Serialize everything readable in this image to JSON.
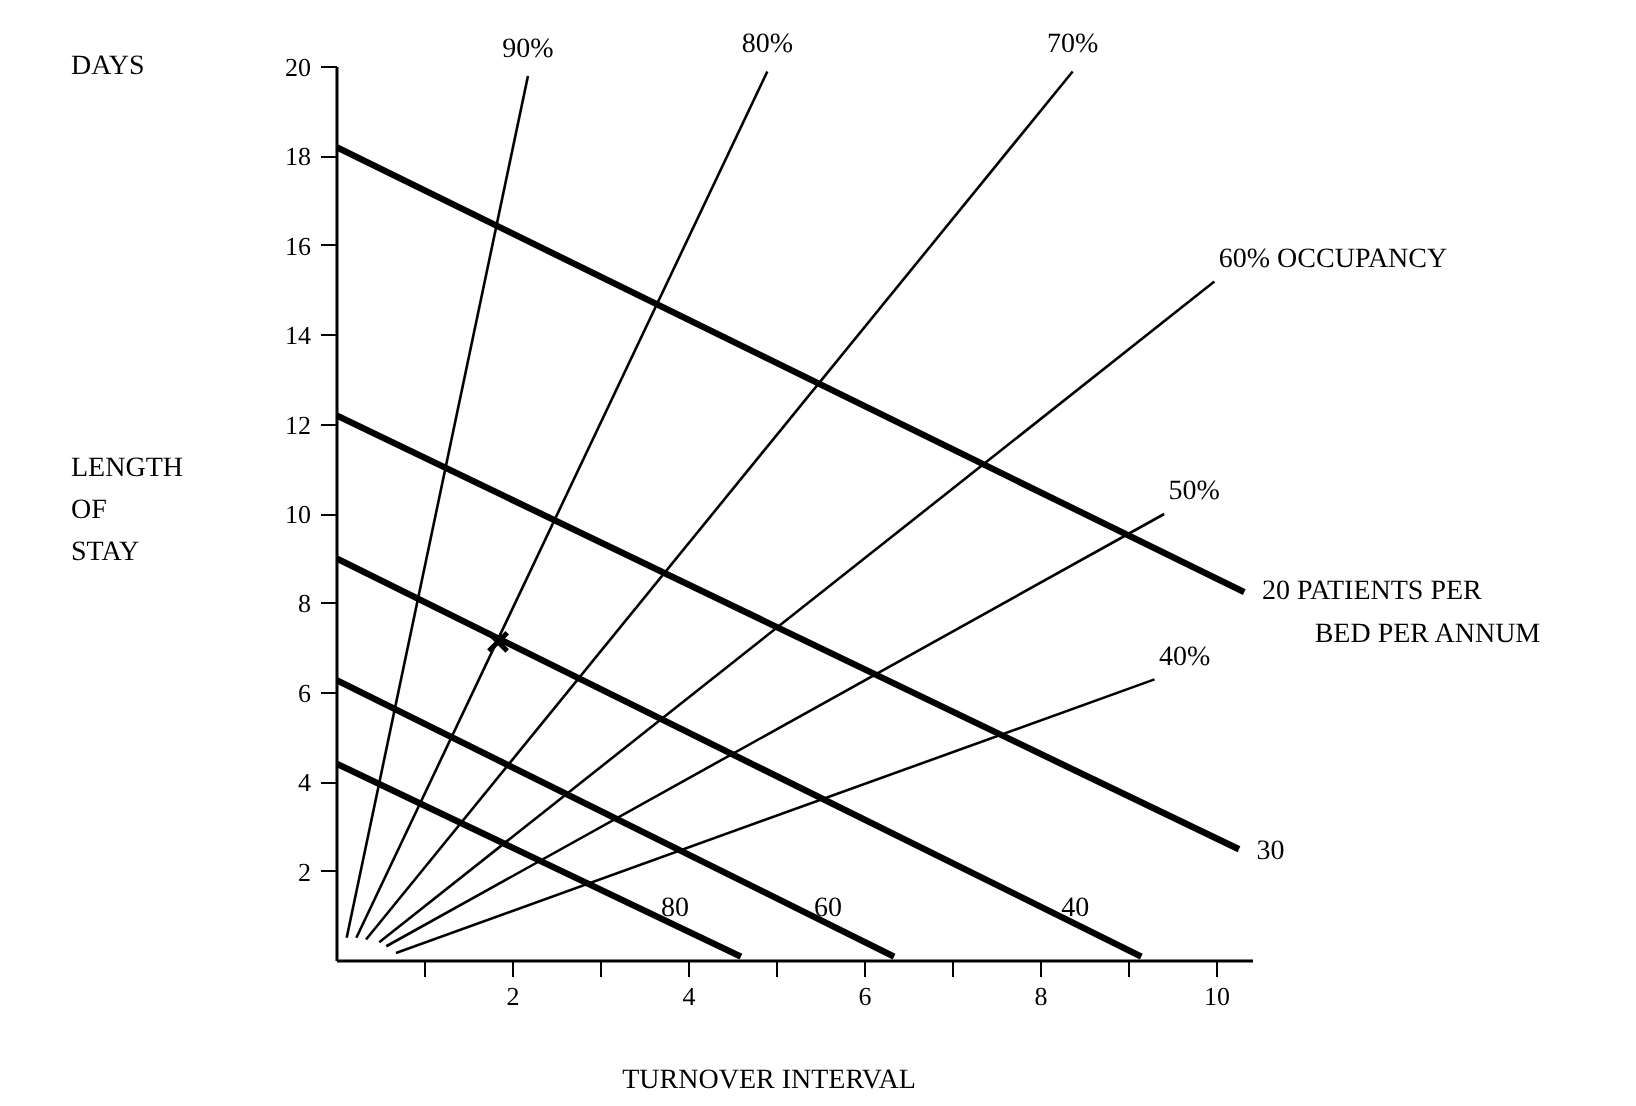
{
  "chart_data": {
    "type": "line",
    "xlabel": "TURNOVER INTERVAL",
    "ylabel": "LENGTH OF STAY",
    "annotations": [
      "DAYS"
    ],
    "xlim": [
      0,
      10.4
    ],
    "ylim": [
      0,
      20
    ],
    "xticks": [
      {
        "value": 1,
        "label": null
      },
      2,
      {
        "value": 3,
        "label": null
      },
      4,
      {
        "value": 5,
        "label": null
      },
      6,
      {
        "value": 7,
        "label": null
      },
      8,
      {
        "value": 9,
        "label": null
      },
      10
    ],
    "yticks": [
      2,
      4,
      6,
      8,
      10,
      12,
      14,
      16,
      18,
      20
    ],
    "grid": false,
    "legend": false,
    "series": [
      {
        "name": "90%",
        "color": "#000000",
        "x": [
          0.11,
          2.17
        ],
        "values": [
          0.52,
          19.8
        ]
      },
      {
        "name": "80%",
        "color": "#000000",
        "x": [
          0.22,
          4.89
        ],
        "values": [
          0.52,
          19.9
        ]
      },
      {
        "name": "70%",
        "color": "#000000",
        "x": [
          0.33,
          8.36
        ],
        "values": [
          0.48,
          19.9
        ]
      },
      {
        "name": "60% OCCUPANCY",
        "color": "#000000",
        "x": [
          0.48,
          9.97
        ],
        "values": [
          0.42,
          15.2
        ]
      },
      {
        "name": "50%",
        "color": "#000000",
        "x": [
          0.56,
          9.4
        ],
        "values": [
          0.33,
          10.0
        ]
      },
      {
        "name": "40%",
        "color": "#000000",
        "x": [
          0.67,
          9.29
        ],
        "values": [
          0.18,
          6.3
        ]
      },
      {
        "name": "20 PATIENTS PER BED PER ANNUM",
        "color": "#000000",
        "x": [
          0,
          10.31
        ],
        "values": [
          18.2,
          8.25
        ]
      },
      {
        "name": "30",
        "color": "#000000",
        "x": [
          0,
          10.25
        ],
        "values": [
          12.2,
          2.5
        ]
      },
      {
        "name": "40",
        "color": "#000000",
        "x": [
          0,
          9.14
        ],
        "values": [
          9.0,
          0.1
        ]
      },
      {
        "name": "60",
        "color": "#000000",
        "x": [
          0,
          6.33
        ],
        "values": [
          6.28,
          0.1
        ]
      },
      {
        "name": "80",
        "color": "#000000",
        "x": [
          0,
          4.59
        ],
        "values": [
          4.41,
          0.1
        ]
      },
      {
        "type": "scatter",
        "marker": "cross",
        "color": "#000000",
        "x": [
          1.83
        ],
        "values": [
          7.14
        ]
      }
    ]
  }
}
